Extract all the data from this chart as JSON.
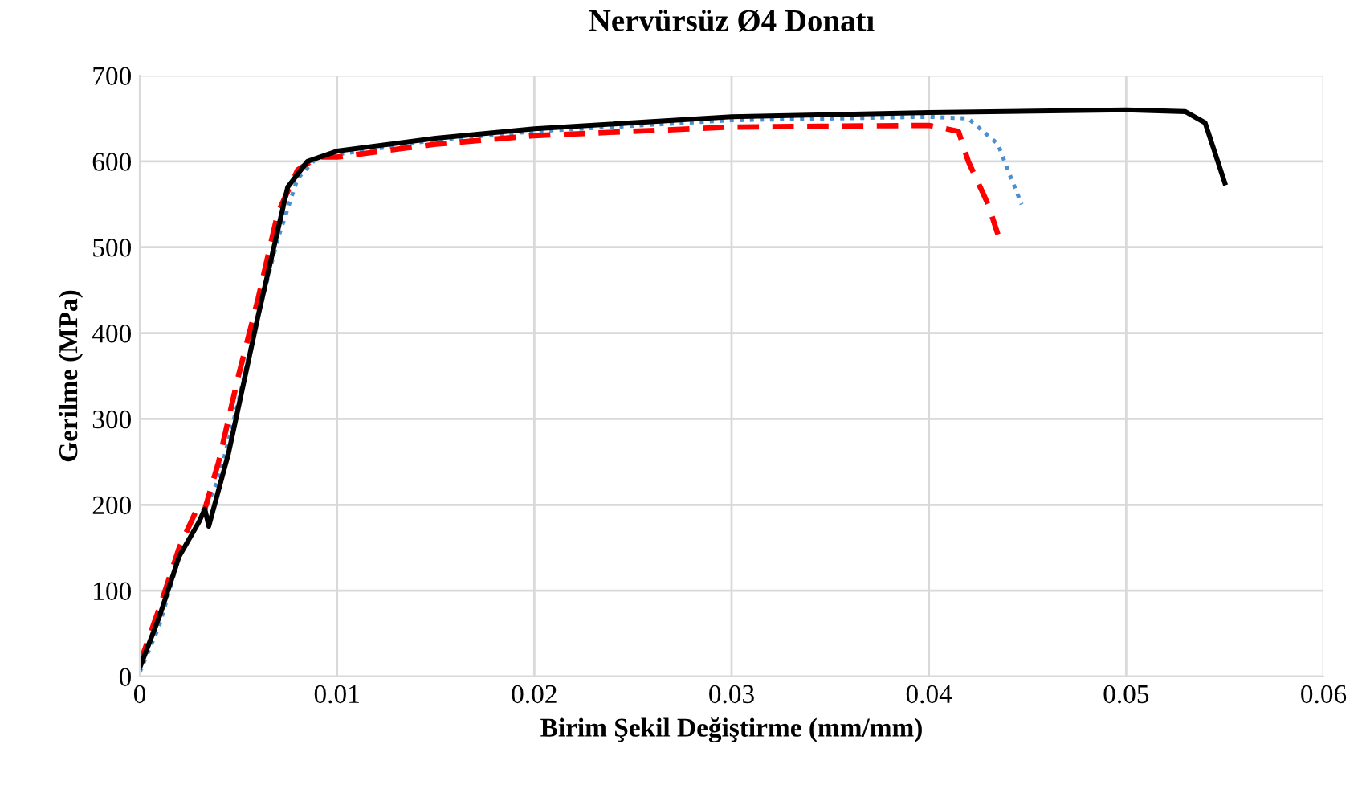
{
  "chart_data": {
    "type": "line",
    "title": "Nervürsüz Ø4 Donatı",
    "xlabel": "Birim Şekil Değiştirme (mm/mm)",
    "ylabel": "Gerilme (MPa)",
    "xlim": [
      0,
      0.06
    ],
    "xticks": [
      0,
      0.01,
      0.02,
      0.03,
      0.04,
      0.05,
      0.06
    ],
    "ylim": [
      0,
      700
    ],
    "yticks": [
      0,
      100,
      200,
      300,
      400,
      500,
      600,
      700
    ],
    "grid": true,
    "legend": false,
    "series": [
      {
        "color": "#4a90d0",
        "line_style": "dotted",
        "x": [
          0,
          0.001,
          0.002,
          0.003,
          0.004,
          0.005,
          0.006,
          0.007,
          0.008,
          0.009,
          0.01,
          0.015,
          0.02,
          0.03,
          0.04,
          0.042,
          0.0435,
          0.044,
          0.0447
        ],
        "values": [
          5,
          60,
          140,
          180,
          230,
          320,
          420,
          510,
          580,
          605,
          608,
          625,
          635,
          648,
          652,
          650,
          620,
          590,
          550
        ]
      },
      {
        "color": "#ff0000",
        "line_style": "dashed",
        "x": [
          0,
          0.001,
          0.002,
          0.003,
          0.0033,
          0.004,
          0.005,
          0.006,
          0.007,
          0.008,
          0.009,
          0.01,
          0.015,
          0.02,
          0.03,
          0.04,
          0.0415,
          0.042,
          0.043,
          0.0435
        ],
        "values": [
          15,
          80,
          150,
          200,
          195,
          250,
          350,
          440,
          540,
          590,
          605,
          605,
          620,
          630,
          640,
          642,
          635,
          600,
          550,
          515
        ]
      },
      {
        "color": "#000000",
        "line_style": "solid",
        "x": [
          0,
          0.001,
          0.002,
          0.003,
          0.0033,
          0.0035,
          0.0045,
          0.006,
          0.007,
          0.0075,
          0.0085,
          0.01,
          0.015,
          0.02,
          0.03,
          0.04,
          0.05,
          0.053,
          0.054,
          0.0545,
          0.055
        ],
        "values": [
          10,
          70,
          140,
          180,
          195,
          175,
          260,
          420,
          520,
          570,
          600,
          612,
          627,
          638,
          652,
          657,
          660,
          658,
          645,
          610,
          575
        ]
      }
    ]
  }
}
